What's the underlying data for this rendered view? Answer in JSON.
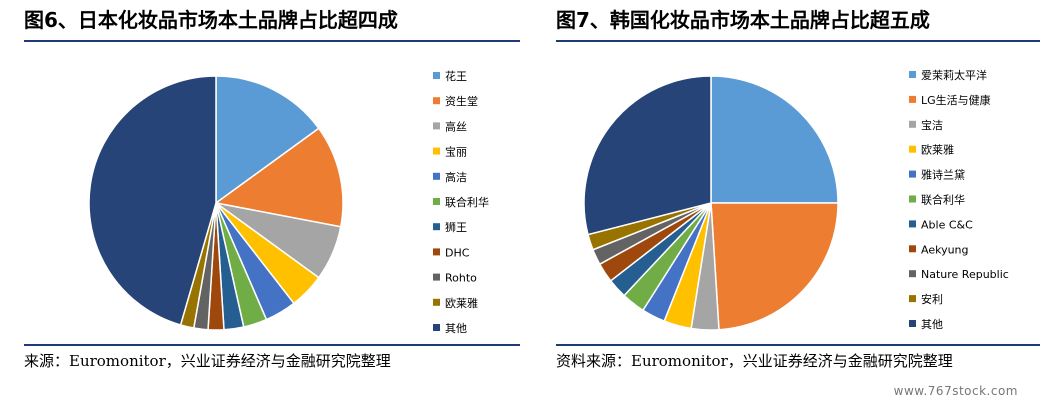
{
  "charts": [
    {
      "figure_title": "图6、日本化妆品市场本土品牌占比超四成",
      "source": "来源：Euromonitor，兴业证券经济与金融研究院整理",
      "chart_data": {
        "type": "pie",
        "title": "",
        "labels": [
          "花王",
          "资生堂",
          "高丝",
          "宝丽",
          "高洁",
          "联合利华",
          "狮王",
          "DHC",
          "Rohto",
          "欧莱雅",
          "其他"
        ],
        "values": [
          15.0,
          13.0,
          7.0,
          4.5,
          4.0,
          3.0,
          2.5,
          2.0,
          1.8,
          1.7,
          45.5
        ],
        "colors": [
          "#5b9bd5",
          "#ed7d31",
          "#a5a5a5",
          "#ffc000",
          "#4472c4",
          "#70ad47",
          "#255e91",
          "#9e480e",
          "#636363",
          "#997300",
          "#264478"
        ],
        "legend": "right"
      }
    },
    {
      "figure_title": "图7、韩国化妆品市场本土品牌占比超五成",
      "source": "资料来源：Euromonitor，兴业证券经济与金融研究院整理",
      "chart_data": {
        "type": "pie",
        "title": "",
        "labels": [
          "爱茉莉太平洋",
          "LG生活与健康",
          "宝洁",
          "欧莱雅",
          "雅诗兰黛",
          "联合利华",
          "Able C&C",
          "Aekyung",
          "Nature Republic",
          "安利",
          "其他"
        ],
        "values": [
          25.0,
          24.0,
          3.5,
          3.5,
          3.0,
          3.0,
          2.5,
          2.5,
          2.0,
          2.0,
          29.0
        ],
        "colors": [
          "#5b9bd5",
          "#ed7d31",
          "#a5a5a5",
          "#ffc000",
          "#4472c4",
          "#70ad47",
          "#255e91",
          "#9e480e",
          "#636363",
          "#997300",
          "#264478"
        ],
        "legend": "right"
      }
    }
  ],
  "watermark": "www.767stock.com"
}
